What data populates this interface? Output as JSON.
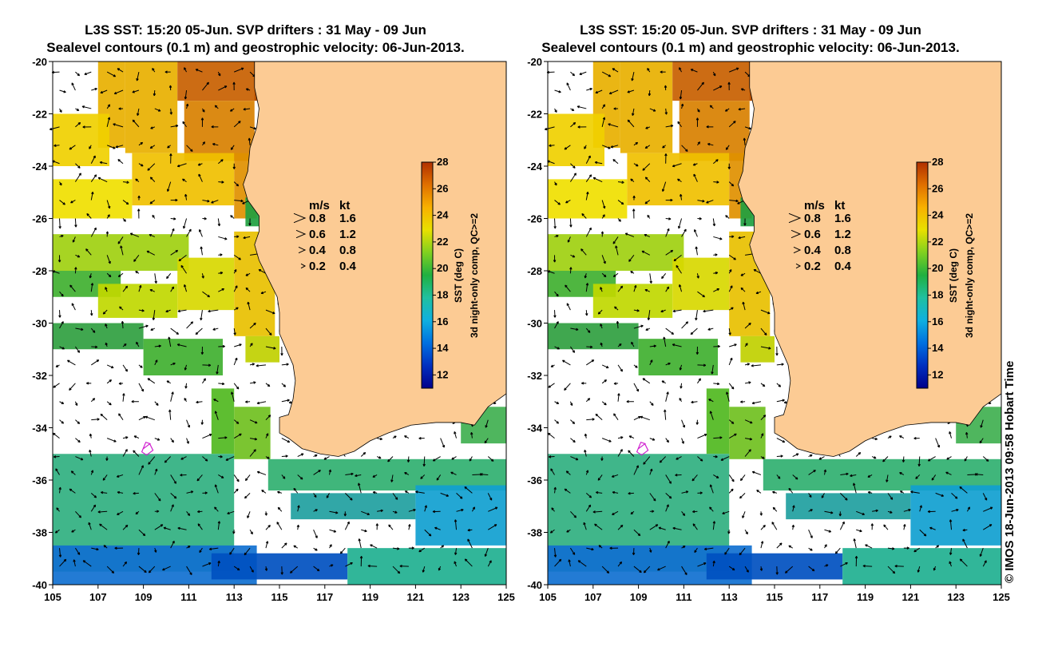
{
  "panels": [
    {
      "title_line1": "L3S SST: 15:20 05-Jun. SVP drifters : 31 May - 09 Jun",
      "title_line2": "Sealevel contours (0.1 m) and geostrophic velocity: 06-Jun-2013.",
      "colorbar_label1": "SST (deg C)",
      "colorbar_label2": "3d night-only comp, QC>=2"
    },
    {
      "title_line1": "L3S SST: 15:20 05-Jun. SVP drifters : 31 May - 09 Jun",
      "title_line2": "Sealevel contours (0.1 m) and geostrophic velocity: 06-Jun-2013.",
      "colorbar_label1": "SST (deg C)",
      "colorbar_label2": "3d night-only comp, QC>=2"
    }
  ],
  "map": {
    "lon_range": [
      105,
      125
    ],
    "lat_range": [
      -40,
      -20
    ],
    "x_ticks": [
      "105",
      "107",
      "109",
      "111",
      "113",
      "115",
      "117",
      "119",
      "121",
      "123",
      "125"
    ],
    "y_ticks": [
      "-20",
      "-22",
      "-24",
      "-26",
      "-28",
      "-30",
      "-32",
      "-34",
      "-36",
      "-38",
      "-40"
    ],
    "land_color": "#fccb94"
  },
  "velocity_legend": {
    "header_ms": "m/s",
    "header_kt": "kt",
    "rows": [
      {
        "ms": "0.8",
        "kt": "1.6"
      },
      {
        "ms": "0.6",
        "kt": "1.2"
      },
      {
        "ms": "0.4",
        "kt": "0.8"
      },
      {
        "ms": "0.2",
        "kt": "0.4"
      }
    ]
  },
  "colorbar": {
    "range": [
      11,
      28
    ],
    "ticks": [
      "12",
      "14",
      "16",
      "18",
      "20",
      "22",
      "24",
      "26",
      "28"
    ],
    "colors": [
      "#00008b",
      "#0030c0",
      "#0070e0",
      "#10b0e0",
      "#20c0a0",
      "#20b040",
      "#80d020",
      "#e8e000",
      "#f8b000",
      "#e07000",
      "#b03000"
    ]
  },
  "credit": "© IMOS 18-Jun-2013 09:58 Hobart Time"
}
